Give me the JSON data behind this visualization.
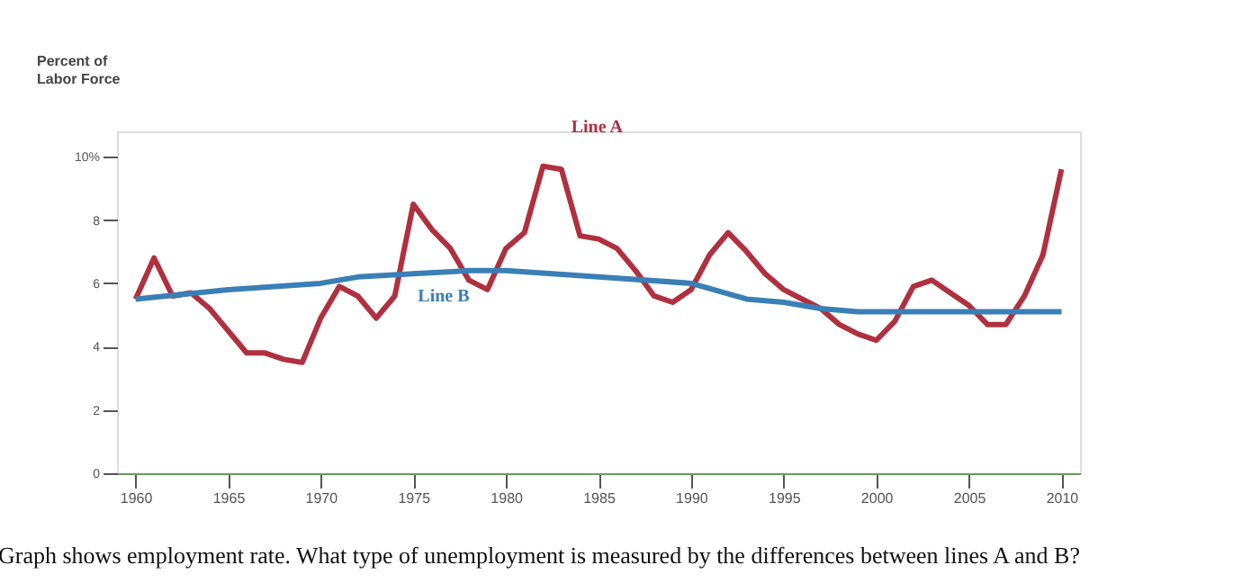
{
  "chart_data": {
    "type": "line",
    "ylabel": "Percent of Labor Force",
    "xlim": [
      1959,
      2011
    ],
    "xticks": [
      1960,
      1965,
      1970,
      1975,
      1980,
      1985,
      1990,
      1995,
      2000,
      2005,
      2010
    ],
    "ylim": [
      0,
      10.8
    ],
    "yticks": [
      0,
      2,
      4,
      6,
      8,
      {
        "value": 10,
        "label": "10%"
      }
    ],
    "grid": false,
    "marker": "none",
    "line_style": "solid",
    "annotations": [
      "Graph shows employment rate. What type of unemployment is measured by the differences between lines A and B?"
    ],
    "series": [
      {
        "name": "Line A",
        "color": "#b0303f",
        "x": [
          1960,
          1961,
          1962,
          1963,
          1964,
          1965,
          1966,
          1967,
          1968,
          1969,
          1970,
          1971,
          1972,
          1973,
          1974,
          1975,
          1976,
          1977,
          1978,
          1979,
          1980,
          1981,
          1982,
          1983,
          1984,
          1985,
          1986,
          1987,
          1988,
          1989,
          1990,
          1991,
          1992,
          1993,
          1994,
          1995,
          1996,
          1997,
          1998,
          1999,
          2000,
          2001,
          2002,
          2003,
          2004,
          2005,
          2006,
          2007,
          2008,
          2009,
          2010
        ],
        "values": [
          5.5,
          6.8,
          5.6,
          5.7,
          5.2,
          4.5,
          3.8,
          3.8,
          3.6,
          3.5,
          4.9,
          5.9,
          5.6,
          4.9,
          5.6,
          8.5,
          7.7,
          7.1,
          6.1,
          5.8,
          7.1,
          7.6,
          9.7,
          9.6,
          7.5,
          7.4,
          7.1,
          6.4,
          5.6,
          5.4,
          5.8,
          6.9,
          7.6,
          7.0,
          6.3,
          5.8,
          5.5,
          5.2,
          4.7,
          4.4,
          4.2,
          4.8,
          5.9,
          6.1,
          5.7,
          5.3,
          4.7,
          4.7,
          5.6,
          6.9,
          9.6
        ]
      },
      {
        "name": "Line B",
        "color": "#3a7fb5",
        "x": [
          1960,
          1965,
          1970,
          1972,
          1975,
          1978,
          1980,
          1985,
          1990,
          1993,
          1995,
          1997,
          1999,
          2000,
          2010
        ],
        "values": [
          5.5,
          5.8,
          6.0,
          6.2,
          6.3,
          6.4,
          6.4,
          6.2,
          6.0,
          5.5,
          5.4,
          5.2,
          5.1,
          5.1,
          5.1
        ]
      }
    ]
  }
}
